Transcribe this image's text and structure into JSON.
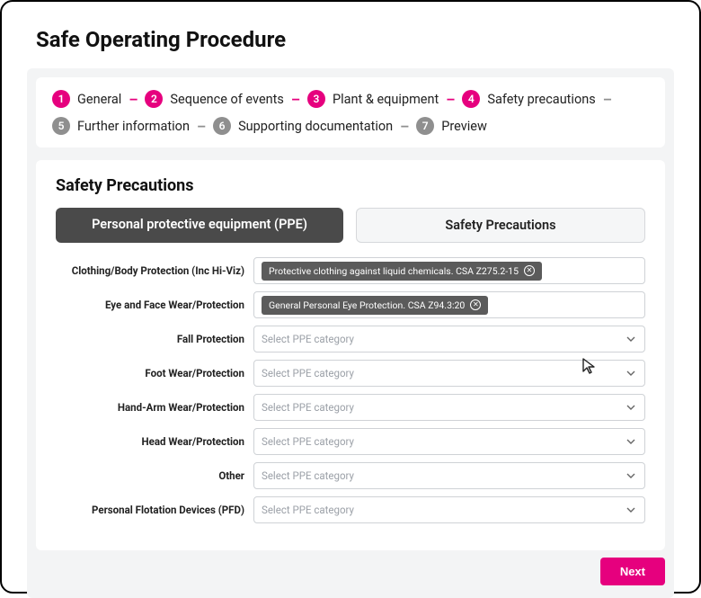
{
  "page": {
    "title": "Safe Operating Procedure"
  },
  "colors": {
    "accent": "#e6007e",
    "step_inactive": "#8f8f8f",
    "tab_active_bg": "#4a4a4a",
    "tab_inactive_bg": "#f5f6f7",
    "chip_bg": "#5b5b5b",
    "border": "#cfd2d6",
    "placeholder": "#9ca1a8",
    "content_bg": "#f3f4f5"
  },
  "stepper": {
    "steps": [
      {
        "num": "1",
        "label": "General",
        "state": "active"
      },
      {
        "num": "2",
        "label": "Sequence of events",
        "state": "active"
      },
      {
        "num": "3",
        "label": "Plant & equipment",
        "state": "active"
      },
      {
        "num": "4",
        "label": "Safety precautions",
        "state": "active"
      },
      {
        "num": "5",
        "label": "Further information",
        "state": "inactive"
      },
      {
        "num": "6",
        "label": "Supporting documentation",
        "state": "inactive"
      },
      {
        "num": "7",
        "label": "Preview",
        "state": "inactive"
      }
    ]
  },
  "panel": {
    "title": "Safety Precautions",
    "tabs": [
      {
        "label": "Personal protective equipment (PPE)",
        "active": true
      },
      {
        "label": "Safety Precautions",
        "active": false
      }
    ],
    "placeholder": "Select PPE category",
    "rows": [
      {
        "label": "Clothing/Body Protection (Inc Hi-Viz)",
        "chip": "Protective clothing against liquid chemicals. CSA Z275.2-15"
      },
      {
        "label": "Eye and Face Wear/Protection",
        "chip": "General Personal Eye Protection. CSA Z94.3:20"
      },
      {
        "label": "Fall Protection",
        "chip": null
      },
      {
        "label": "Foot Wear/Protection",
        "chip": null
      },
      {
        "label": "Hand-Arm Wear/Protection",
        "chip": null
      },
      {
        "label": "Head Wear/Protection",
        "chip": null
      },
      {
        "label": "Other",
        "chip": null
      },
      {
        "label": "Personal Flotation Devices (PFD)",
        "chip": null
      }
    ]
  },
  "footer": {
    "next_label": "Next"
  }
}
